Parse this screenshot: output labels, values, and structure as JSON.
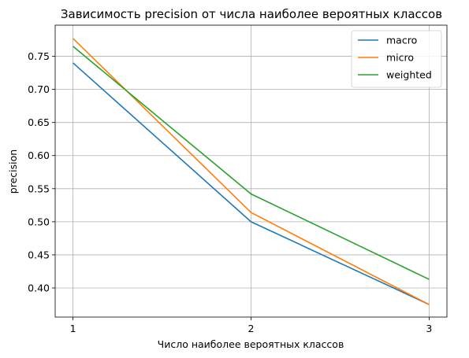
{
  "chart_data": {
    "type": "line",
    "title": "Зависимость precision от числа наиболее вероятных классов",
    "xlabel": "Число наиболее вероятных классов",
    "ylabel": "precision",
    "x": [
      1,
      2,
      3
    ],
    "x_ticks": [
      "1",
      "2",
      "3"
    ],
    "y_ticks": [
      "0.40",
      "0.45",
      "0.50",
      "0.55",
      "0.60",
      "0.65",
      "0.70",
      "0.75"
    ],
    "xlim": [
      0.9,
      3.1
    ],
    "ylim": [
      0.356,
      0.797
    ],
    "grid": true,
    "legend_position": "top-right",
    "series": [
      {
        "name": "macro",
        "color": "#1f77b4",
        "values": [
          0.74,
          0.5,
          0.375
        ]
      },
      {
        "name": "micro",
        "color": "#ff7f0e",
        "values": [
          0.777,
          0.514,
          0.375
        ]
      },
      {
        "name": "weighted",
        "color": "#2ca02c",
        "values": [
          0.765,
          0.542,
          0.413
        ]
      }
    ]
  }
}
